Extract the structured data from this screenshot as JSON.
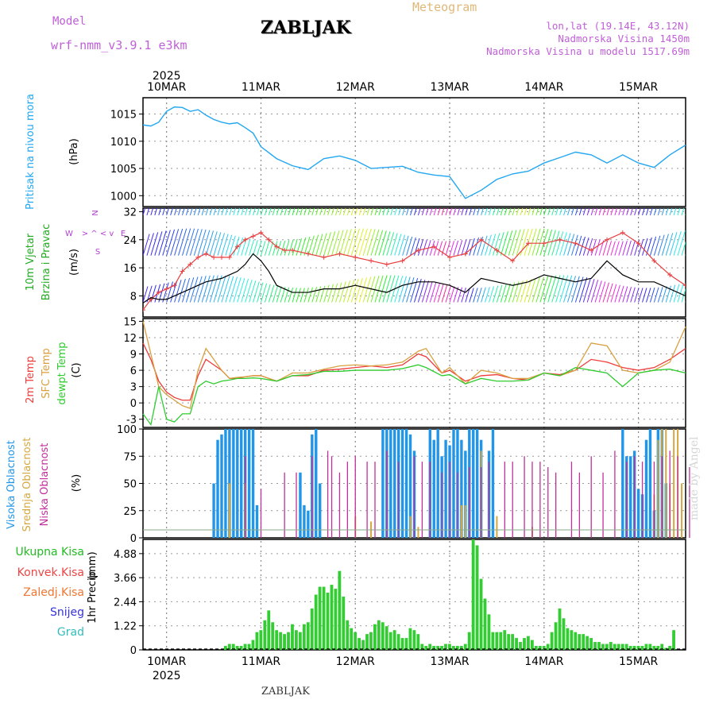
{
  "header": {
    "model_label": "Model",
    "model_name": "wrf-nmm_v3.9.1  e3km",
    "station": "ZABLJAK",
    "product": "Meteogram",
    "coords": "lon,lat (19.14E, 43.12N)",
    "elevation": "Nadmorska Visina 1450m",
    "model_elevation": "Nadmorska Visina u modelu 1517.69m",
    "footer_station": "ZABLJAK",
    "credit": "made by Angel"
  },
  "colors": {
    "pressure": "#22a7f0",
    "gust": "#e84040",
    "wind_mean": "#000000",
    "t2m": "#ee3b3b",
    "sfc": "#d8a040",
    "dew": "#2ecc2e",
    "cloud_high": "#2196e8",
    "cloud_mid": "#d4a840",
    "cloud_low": "#c0309a",
    "precip": "#33cc33"
  },
  "time_axis": {
    "year": "2025",
    "days": [
      "10MAR",
      "11MAR",
      "12MAR",
      "13MAR",
      "14MAR",
      "15MAR"
    ],
    "start_hour": -6,
    "end_hour": 132
  },
  "chart_data": [
    {
      "type": "line",
      "panel": "pressure",
      "labels": [
        "Pritisak na nivou mora",
        "(hPa)"
      ],
      "yticks": [
        "1000",
        "1005",
        "1010",
        "1015"
      ],
      "ylim": [
        998,
        1018
      ],
      "x": [
        -6,
        -4,
        -2,
        0,
        2,
        4,
        6,
        8,
        10,
        12,
        14,
        16,
        18,
        20,
        22,
        24,
        28,
        32,
        36,
        40,
        44,
        48,
        52,
        56,
        60,
        64,
        68,
        72,
        76,
        80,
        84,
        88,
        92,
        96,
        100,
        104,
        108,
        112,
        116,
        120,
        124,
        128,
        132
      ],
      "values": [
        1013,
        1012.8,
        1013.5,
        1015.5,
        1016.3,
        1016.2,
        1015.5,
        1015.8,
        1014.8,
        1014,
        1013.5,
        1013.2,
        1013.4,
        1012.5,
        1011.5,
        1009,
        1006.8,
        1005.5,
        1004.8,
        1006.8,
        1007.3,
        1006.5,
        1005,
        1005.2,
        1005.4,
        1004.3,
        1003.8,
        1003.5,
        999.5,
        1001,
        1003,
        1004,
        1004.5,
        1006,
        1007,
        1008,
        1007.5,
        1006,
        1007.5,
        1006,
        1005.2,
        1007.5,
        1009.3
      ]
    },
    {
      "type": "line",
      "panel": "wind",
      "labels": [
        "10m Vjetar",
        "Brzina i Pravac",
        "(m/s)"
      ],
      "compass": {
        "n": "N",
        "e": "E",
        "s": "S",
        "w": "W",
        "icon": "> ^ < v"
      },
      "yticks": [
        "8",
        "16",
        "24",
        "32"
      ],
      "ylim": [
        2,
        33
      ],
      "x": [
        -6,
        -4,
        -2,
        0,
        2,
        4,
        6,
        8,
        10,
        12,
        14,
        16,
        18,
        20,
        22,
        24,
        26,
        28,
        30,
        32,
        36,
        40,
        44,
        48,
        52,
        56,
        60,
        64,
        68,
        72,
        76,
        80,
        84,
        88,
        92,
        96,
        100,
        104,
        108,
        112,
        116,
        120,
        124,
        128,
        132
      ],
      "series": [
        {
          "name": "gust",
          "values": [
            4,
            7,
            9,
            10,
            11,
            15,
            17,
            19,
            20,
            19,
            19,
            19,
            22,
            24,
            25,
            26,
            24,
            22,
            21,
            21,
            20,
            19,
            20,
            19,
            18,
            17,
            18,
            21,
            22,
            19,
            20,
            24,
            21,
            18,
            23,
            23,
            24,
            23,
            21,
            24,
            26,
            23,
            18,
            14,
            11
          ]
        },
        {
          "name": "mean",
          "values": [
            6,
            7.5,
            7,
            7,
            8,
            9,
            10,
            11,
            12,
            12.5,
            13,
            14,
            15,
            17,
            20,
            18,
            15,
            11,
            10,
            9,
            9,
            10,
            10,
            11,
            10,
            9,
            11,
            12,
            12,
            11,
            9,
            13,
            12,
            11,
            12,
            14,
            13,
            12,
            13,
            18,
            14,
            12,
            12,
            10,
            8
          ]
        }
      ],
      "barb_rows": [
        8,
        19.5,
        31
      ]
    },
    {
      "type": "line",
      "panel": "temperature",
      "labels": [
        "2m Temp",
        "SFC Temp",
        "dewpt Temp",
        "(C)"
      ],
      "yticks": [
        "-3",
        "0",
        "3",
        "6",
        "9",
        "12",
        "15"
      ],
      "ylim": [
        -4.5,
        15.5
      ],
      "x": [
        -6,
        -4,
        -2,
        0,
        2,
        4,
        6,
        8,
        10,
        12,
        14,
        16,
        18,
        20,
        22,
        24,
        28,
        32,
        36,
        40,
        44,
        48,
        52,
        56,
        60,
        64,
        66,
        70,
        72,
        76,
        80,
        84,
        88,
        92,
        96,
        100,
        104,
        108,
        112,
        116,
        120,
        124,
        128,
        132
      ],
      "series": [
        {
          "name": "t2m",
          "values": [
            11,
            8,
            4,
            2,
            1,
            0.5,
            0.5,
            5,
            8,
            7,
            6,
            4.5,
            4.5,
            4.8,
            5,
            5,
            4,
            5,
            5,
            6,
            6.2,
            6.5,
            6.8,
            6.5,
            7,
            9,
            8.5,
            5.5,
            6,
            4,
            5,
            5.2,
            4.5,
            4.2,
            5.5,
            5.2,
            6,
            8,
            7.5,
            6.5,
            6,
            6.5,
            8,
            10
          ]
        },
        {
          "name": "sfc",
          "values": [
            15,
            9,
            3,
            1.5,
            0.5,
            -0.5,
            -1,
            6,
            10,
            8,
            6,
            4.5,
            4.7,
            4.8,
            5,
            5,
            4,
            5.5,
            5.5,
            6.2,
            6.8,
            7,
            6.8,
            7,
            7.5,
            9.5,
            10,
            5.5,
            6.5,
            3.5,
            6,
            5.5,
            4.5,
            4.5,
            5.5,
            5,
            6,
            11,
            10.5,
            6,
            5.5,
            6,
            7.5,
            14
          ]
        },
        {
          "name": "dew",
          "values": [
            -2,
            -4,
            3,
            -3,
            -3.5,
            -2,
            -2,
            3,
            4,
            3.5,
            4,
            4.2,
            4.5,
            4.5,
            4.6,
            4.5,
            4,
            5,
            5.2,
            5.8,
            5.8,
            6,
            6,
            6,
            6.3,
            7,
            6.5,
            5,
            5.2,
            3.5,
            4.5,
            4,
            4,
            4.2,
            5.5,
            5,
            6.5,
            6,
            5.5,
            3,
            5.5,
            6,
            6.2,
            5.5
          ]
        }
      ]
    },
    {
      "type": "bar",
      "panel": "clouds",
      "labels": [
        "Visoka Oblacnost",
        "Srednja Oblacnost",
        "Niska Oblacnost",
        "(%)"
      ],
      "yticks": [
        "0",
        "25",
        "50",
        "75",
        "100"
      ],
      "ylim": [
        0,
        100
      ],
      "series": [
        {
          "name": "high",
          "x": [
            12,
            13,
            14,
            15,
            16,
            17,
            18,
            19,
            20,
            21,
            22,
            23,
            34,
            35,
            36,
            37,
            38,
            39,
            55,
            56,
            57,
            58,
            59,
            60,
            61,
            62,
            63,
            67,
            68,
            69,
            70,
            71,
            72,
            73,
            74,
            75,
            76,
            77,
            78,
            79,
            80,
            82,
            83,
            116,
            117,
            118,
            119,
            120,
            121,
            122,
            123,
            124,
            125,
            126,
            127
          ],
          "values": [
            50,
            90,
            95,
            100,
            100,
            100,
            100,
            100,
            100,
            100,
            100,
            30,
            60,
            30,
            25,
            95,
            100,
            50,
            100,
            100,
            100,
            100,
            100,
            100,
            100,
            95,
            80,
            100,
            90,
            100,
            75,
            90,
            85,
            100,
            100,
            90,
            80,
            100,
            100,
            100,
            90,
            80,
            100,
            100,
            75,
            75,
            80,
            45,
            40,
            90,
            100,
            25,
            100,
            100,
            50
          ]
        },
        {
          "name": "mid",
          "x": [
            16,
            20,
            48,
            52,
            62,
            64,
            75,
            76,
            80,
            84,
            93,
            124,
            125,
            126,
            127,
            128,
            129,
            130,
            131
          ],
          "values": [
            50,
            50,
            20,
            15,
            20,
            10,
            30,
            30,
            80,
            20,
            10,
            40,
            90,
            100,
            100,
            50,
            100,
            100,
            50
          ]
        },
        {
          "name": "low",
          "x": [
            20,
            24,
            30,
            33,
            37,
            41,
            42,
            44,
            46,
            48,
            51,
            53,
            56,
            59,
            63,
            65,
            67,
            70,
            72,
            74,
            77,
            80,
            82,
            86,
            88,
            91,
            93,
            95,
            97,
            99,
            103,
            105,
            108,
            111,
            114,
            117,
            119,
            121,
            124,
            126,
            128,
            130,
            133
          ],
          "values": [
            75,
            45,
            60,
            60,
            75,
            80,
            75,
            60,
            70,
            75,
            70,
            70,
            80,
            70,
            75,
            70,
            70,
            60,
            70,
            60,
            65,
            65,
            70,
            70,
            70,
            75,
            70,
            70,
            65,
            60,
            70,
            60,
            75,
            60,
            80,
            70,
            75,
            70,
            70,
            75,
            80,
            75,
            65
          ]
        }
      ]
    },
    {
      "type": "bar",
      "panel": "precip",
      "labels": [
        "1hr Precip",
        "(mm)"
      ],
      "legend": [
        "Ukupna Kisa",
        "Konvek.Kisa",
        "Zaledj.Kisa",
        "Snijeg",
        "Grad"
      ],
      "yticks": [
        "0",
        "1.22",
        "2.44",
        "3.66",
        "4.88"
      ],
      "ylim": [
        0,
        5.6
      ],
      "x": [
        15,
        16,
        17,
        18,
        19,
        20,
        21,
        22,
        23,
        24,
        25,
        26,
        27,
        28,
        29,
        30,
        31,
        32,
        33,
        34,
        35,
        36,
        37,
        38,
        39,
        40,
        41,
        42,
        43,
        44,
        45,
        46,
        47,
        48,
        49,
        50,
        51,
        52,
        53,
        54,
        55,
        56,
        57,
        58,
        59,
        60,
        61,
        62,
        63,
        64,
        65,
        66,
        67,
        68,
        69,
        70,
        71,
        72,
        73,
        74,
        75,
        76,
        77,
        78,
        79,
        80,
        81,
        82,
        83,
        84,
        85,
        86,
        87,
        88,
        89,
        90,
        91,
        92,
        93,
        94,
        95,
        96,
        97,
        98,
        99,
        100,
        101,
        102,
        103,
        104,
        105,
        106,
        107,
        108,
        109,
        110,
        111,
        112,
        113,
        114,
        115,
        116,
        117,
        118,
        119,
        120,
        121,
        122,
        123,
        124,
        125,
        126,
        127,
        128,
        129
      ],
      "values": [
        0.2,
        0.3,
        0.3,
        0.2,
        0.2,
        0.3,
        0.3,
        0.5,
        0.9,
        1.0,
        1.5,
        2.0,
        1.4,
        1.0,
        0.9,
        0.8,
        0.9,
        1.3,
        1.0,
        0.9,
        1.3,
        1.4,
        2.1,
        2.8,
        3.2,
        3.2,
        2.9,
        3.3,
        3.1,
        4.0,
        2.7,
        1.5,
        1.1,
        0.9,
        0.6,
        0.5,
        0.8,
        0.9,
        1.3,
        1.5,
        1.4,
        1.2,
        0.9,
        1.0,
        0.8,
        0.6,
        0.6,
        1.1,
        1.0,
        0.8,
        0.3,
        0.2,
        0.3,
        0.2,
        0.2,
        0.2,
        0.3,
        0.3,
        0.2,
        0.2,
        0.2,
        0.3,
        0.9,
        5.6,
        5.3,
        3.6,
        2.6,
        1.8,
        0.9,
        0.9,
        0.9,
        1.0,
        0.8,
        0.8,
        0.6,
        0.4,
        0.6,
        0.7,
        0.5,
        0.2,
        0.2,
        0.2,
        0.3,
        0.9,
        1.4,
        2.1,
        1.6,
        1.1,
        1.0,
        0.9,
        0.8,
        0.8,
        0.7,
        0.6,
        0.4,
        0.4,
        0.3,
        0.3,
        0.4,
        0.3,
        0.3,
        0.3,
        0.3,
        0.2,
        0.2,
        0.2,
        0.2,
        0.3,
        0.3,
        0.2,
        0.2,
        0.3,
        0.1,
        0.2,
        1.0
      ]
    }
  ]
}
